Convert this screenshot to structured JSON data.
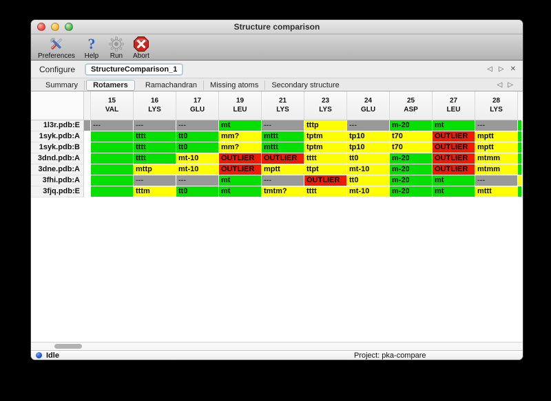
{
  "window": {
    "title": "Structure comparison"
  },
  "toolbar": {
    "items": [
      {
        "label": "Preferences",
        "icon": "preferences-icon"
      },
      {
        "label": "Help",
        "icon": "help-icon"
      },
      {
        "label": "Run",
        "icon": "run-icon"
      },
      {
        "label": "Abort",
        "icon": "abort-icon"
      }
    ]
  },
  "configure": {
    "label": "Configure",
    "value": "StructureComparison_1",
    "nav_back": "◁",
    "nav_forward": "▷",
    "nav_close": "✕"
  },
  "tabs": {
    "items": [
      "Summary",
      "Rotamers",
      "Ramachandran",
      "Missing atoms",
      "Secondary structure"
    ],
    "active": "Rotamers",
    "nav_back": "◁",
    "nav_forward": "▷"
  },
  "colors": {
    "green": "#06e000",
    "yellow": "#ffff00",
    "red": "#ee1b00",
    "gray": "#999999",
    "white": "#ffffff"
  },
  "table": {
    "columns": [
      {
        "num": "15",
        "res": "VAL"
      },
      {
        "num": "16",
        "res": "LYS"
      },
      {
        "num": "17",
        "res": "GLU"
      },
      {
        "num": "19",
        "res": "LEU"
      },
      {
        "num": "21",
        "res": "LYS"
      },
      {
        "num": "23",
        "res": "LYS"
      },
      {
        "num": "24",
        "res": "GLU"
      },
      {
        "num": "25",
        "res": "ASP"
      },
      {
        "num": "27",
        "res": "LEU"
      },
      {
        "num": "28",
        "res": "LYS"
      }
    ],
    "rows": [
      {
        "label": "1l3r.pdb:E",
        "sliver": "gray",
        "right": "green",
        "cells": [
          {
            "t": "---",
            "c": "gray"
          },
          {
            "t": "---",
            "c": "gray"
          },
          {
            "t": "---",
            "c": "gray"
          },
          {
            "t": "mt",
            "c": "green"
          },
          {
            "t": "---",
            "c": "gray"
          },
          {
            "t": "tttp",
            "c": "yellow"
          },
          {
            "t": "---",
            "c": "gray"
          },
          {
            "t": "m-20",
            "c": "green"
          },
          {
            "t": "mt",
            "c": "green"
          },
          {
            "t": "---",
            "c": "gray"
          }
        ]
      },
      {
        "label": "1syk.pdb:A",
        "sliver": "white",
        "right": "green",
        "cells": [
          {
            "t": "",
            "c": "green"
          },
          {
            "t": "tttt",
            "c": "green"
          },
          {
            "t": "tt0",
            "c": "green"
          },
          {
            "t": "mm?",
            "c": "yellow"
          },
          {
            "t": "mttt",
            "c": "green"
          },
          {
            "t": "tptm",
            "c": "yellow"
          },
          {
            "t": "tp10",
            "c": "yellow"
          },
          {
            "t": "t70",
            "c": "yellow"
          },
          {
            "t": "OUTLIER",
            "c": "red"
          },
          {
            "t": "mptt",
            "c": "yellow"
          }
        ]
      },
      {
        "label": "1syk.pdb:B",
        "sliver": "white",
        "right": "green",
        "cells": [
          {
            "t": "",
            "c": "green"
          },
          {
            "t": "tttt",
            "c": "green"
          },
          {
            "t": "tt0",
            "c": "green"
          },
          {
            "t": "mm?",
            "c": "yellow"
          },
          {
            "t": "mttt",
            "c": "green"
          },
          {
            "t": "tptm",
            "c": "yellow"
          },
          {
            "t": "tp10",
            "c": "yellow"
          },
          {
            "t": "t70",
            "c": "yellow"
          },
          {
            "t": "OUTLIER",
            "c": "red"
          },
          {
            "t": "mptt",
            "c": "yellow"
          }
        ]
      },
      {
        "label": "3dnd.pdb:A",
        "sliver": "white",
        "right": "green",
        "cells": [
          {
            "t": "",
            "c": "green"
          },
          {
            "t": "tttt",
            "c": "green"
          },
          {
            "t": "mt-10",
            "c": "yellow"
          },
          {
            "t": "OUTLIER",
            "c": "red"
          },
          {
            "t": "OUTLIER",
            "c": "red"
          },
          {
            "t": "tttt",
            "c": "yellow"
          },
          {
            "t": "tt0",
            "c": "yellow"
          },
          {
            "t": "m-20",
            "c": "green"
          },
          {
            "t": "OUTLIER",
            "c": "red"
          },
          {
            "t": "mtmm",
            "c": "yellow"
          }
        ]
      },
      {
        "label": "3dne.pdb:A",
        "sliver": "white",
        "right": "green",
        "cells": [
          {
            "t": "",
            "c": "green"
          },
          {
            "t": "mttp",
            "c": "yellow"
          },
          {
            "t": "mt-10",
            "c": "yellow"
          },
          {
            "t": "OUTLIER",
            "c": "red"
          },
          {
            "t": "mptt",
            "c": "yellow"
          },
          {
            "t": "ttpt",
            "c": "yellow"
          },
          {
            "t": "mt-10",
            "c": "yellow"
          },
          {
            "t": "m-20",
            "c": "green"
          },
          {
            "t": "OUTLIER",
            "c": "red"
          },
          {
            "t": "mtmm",
            "c": "yellow"
          }
        ]
      },
      {
        "label": "3fhi.pdb:A",
        "sliver": "white",
        "right": "yellow",
        "cells": [
          {
            "t": "",
            "c": "green"
          },
          {
            "t": "---",
            "c": "gray"
          },
          {
            "t": "---",
            "c": "gray"
          },
          {
            "t": "mt",
            "c": "green"
          },
          {
            "t": "---",
            "c": "gray"
          },
          {
            "t": "OUTLIER",
            "c": "red"
          },
          {
            "t": "tt0",
            "c": "yellow"
          },
          {
            "t": "m-20",
            "c": "green"
          },
          {
            "t": "mt",
            "c": "green"
          },
          {
            "t": "---",
            "c": "gray"
          }
        ]
      },
      {
        "label": "3fjq.pdb:E",
        "sliver": "white",
        "right": "green",
        "cells": [
          {
            "t": "",
            "c": "green"
          },
          {
            "t": "tttm",
            "c": "yellow"
          },
          {
            "t": "tt0",
            "c": "green"
          },
          {
            "t": "mt",
            "c": "green"
          },
          {
            "t": "tmtm?",
            "c": "yellow"
          },
          {
            "t": "tttt",
            "c": "yellow"
          },
          {
            "t": "mt-10",
            "c": "yellow"
          },
          {
            "t": "m-20",
            "c": "green"
          },
          {
            "t": "mt",
            "c": "green"
          },
          {
            "t": "mttt",
            "c": "yellow"
          }
        ]
      }
    ]
  },
  "statusbar": {
    "state": "Idle",
    "project": "Project: pka-compare"
  }
}
